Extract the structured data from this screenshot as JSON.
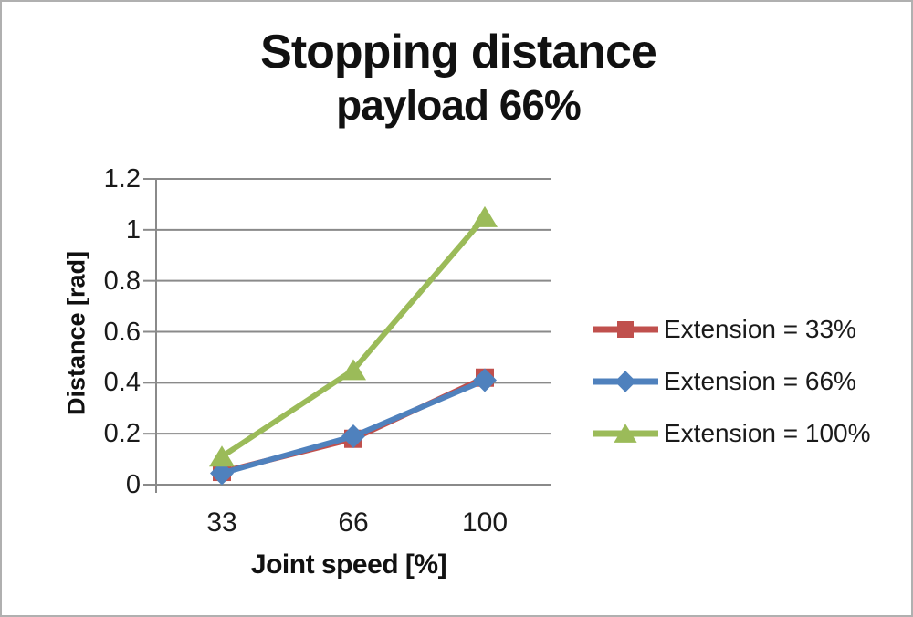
{
  "title": "Stopping distance",
  "subtitle": "payload 66%",
  "chart_data": {
    "type": "line",
    "title": "Stopping distance",
    "subtitle": "payload 66%",
    "xlabel": "Joint speed [%]",
    "ylabel": "Distance [rad]",
    "categories": [
      "33",
      "66",
      "100"
    ],
    "ylim": [
      0,
      1.2
    ],
    "ytick_labels": [
      "0",
      "0.2",
      "0.4",
      "0.6",
      "0.8",
      "1",
      "1.2"
    ],
    "ytick_values": [
      0,
      0.2,
      0.4,
      0.6,
      0.8,
      1,
      1.2
    ],
    "grid": true,
    "legend_position": "right",
    "series": [
      {
        "name": "Extension = 33%",
        "marker": "square",
        "color": "#C0504D",
        "values": [
          0.05,
          0.18,
          0.42
        ]
      },
      {
        "name": "Extension = 66%",
        "marker": "diamond",
        "color": "#4F81BD",
        "values": [
          0.045,
          0.19,
          0.41
        ]
      },
      {
        "name": "Extension = 100%",
        "marker": "triangle",
        "color": "#9BBB59",
        "values": [
          0.11,
          0.45,
          1.05
        ]
      }
    ],
    "gridline_color": "#8a8a8a",
    "axis_color": "#8a8a8a",
    "text_color": "#1a1a1a"
  }
}
